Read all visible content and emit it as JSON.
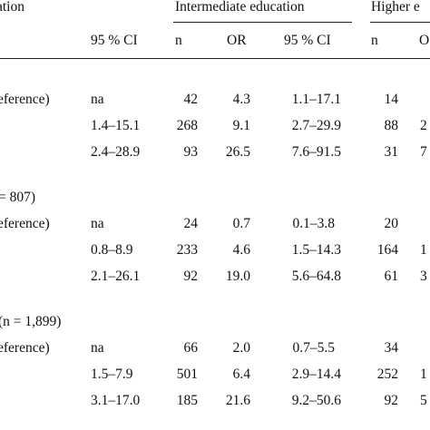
{
  "header": {
    "groups": [
      {
        "label": "ation"
      },
      {
        "label": "Intermediate education"
      },
      {
        "label": "Higher e"
      }
    ],
    "subheaders": [
      "95 % CI",
      "n",
      "OR",
      "95 % CI",
      "n",
      "O"
    ]
  },
  "sections": [
    {
      "title": "",
      "rows": [
        {
          "label": "eference)",
          "ci_prev": "na",
          "n": "42",
          "or": "4.3",
          "ci": "1.1–17.1",
          "n_h": "14",
          "or_h": ""
        },
        {
          "label": "",
          "ci_prev": "1.4–15.1",
          "n": "268",
          "or": "9.1",
          "ci": "2.7–29.9",
          "n_h": "88",
          "or_h": "2"
        },
        {
          "label": "",
          "ci_prev": "2.4–28.9",
          "n": "93",
          "or": "26.5",
          "ci": "7.6–91.5",
          "n_h": "31",
          "or_h": "7"
        }
      ]
    },
    {
      "title": "= 807)",
      "rows": [
        {
          "label": "eference)",
          "ci_prev": "na",
          "n": "24",
          "or": "0.7",
          "ci": "0.1–3.8",
          "n_h": "20",
          "or_h": ""
        },
        {
          "label": "",
          "ci_prev": "0.8–8.9",
          "n": "233",
          "or": "4.6",
          "ci": "1.5–14.3",
          "n_h": "164",
          "or_h": "1"
        },
        {
          "label": "",
          "ci_prev": "2.1–26.1",
          "n": "92",
          "or": "19.0",
          "ci": "5.6–64.8",
          "n_h": "61",
          "or_h": "3"
        }
      ]
    },
    {
      "title": "(n = 1,899)",
      "rows": [
        {
          "label": "eference)",
          "ci_prev": "na",
          "n": "66",
          "or": "2.0",
          "ci": "0.7–5.5",
          "n_h": "34",
          "or_h": ""
        },
        {
          "label": "",
          "ci_prev": "1.5–7.9",
          "n": "501",
          "or": "6.4",
          "ci": "2.9–14.4",
          "n_h": "252",
          "or_h": "1"
        },
        {
          "label": "",
          "ci_prev": "3.1–17.0",
          "n": "185",
          "or": "21.6",
          "ci": "9.2–50.6",
          "n_h": "92",
          "or_h": "5"
        }
      ]
    }
  ]
}
